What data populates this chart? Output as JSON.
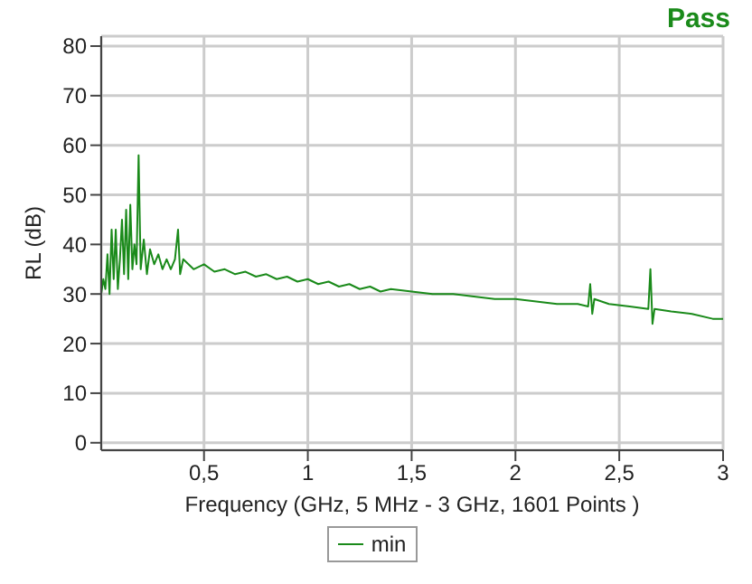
{
  "chart_data": {
    "type": "line",
    "title": "Pass",
    "xlabel": "Frequency (GHz, 5 MHz - 3 GHz, 1601 Points )",
    "ylabel": "RL (dB)",
    "xlim": [
      0.005,
      3
    ],
    "xticks": [
      {
        "value": 0.5,
        "label": "0,5"
      },
      1,
      {
        "value": 1.5,
        "label": "1,5"
      },
      2,
      {
        "value": 2.5,
        "label": "2,5"
      },
      3
    ],
    "ylim": [
      -1.5,
      82
    ],
    "yticks": [
      0,
      10,
      20,
      30,
      40,
      50,
      60,
      70,
      80
    ],
    "grid": true,
    "legend": "bottom",
    "marker": "none",
    "line_style": "solid",
    "series": [
      {
        "name": "min",
        "color": "#1a8a1a",
        "x": [
          0.005,
          0.015,
          0.025,
          0.035,
          0.045,
          0.055,
          0.065,
          0.075,
          0.085,
          0.095,
          0.105,
          0.115,
          0.125,
          0.135,
          0.145,
          0.155,
          0.165,
          0.175,
          0.185,
          0.195,
          0.21,
          0.225,
          0.24,
          0.26,
          0.28,
          0.3,
          0.32,
          0.34,
          0.36,
          0.375,
          0.385,
          0.4,
          0.45,
          0.5,
          0.55,
          0.6,
          0.65,
          0.7,
          0.75,
          0.8,
          0.85,
          0.9,
          0.95,
          1.0,
          1.05,
          1.1,
          1.15,
          1.2,
          1.25,
          1.3,
          1.35,
          1.4,
          1.5,
          1.6,
          1.7,
          1.8,
          1.9,
          2.0,
          2.1,
          2.2,
          2.3,
          2.35,
          2.36,
          2.37,
          2.38,
          2.45,
          2.55,
          2.64,
          2.65,
          2.66,
          2.67,
          2.75,
          2.85,
          2.95,
          3.0
        ],
        "values": [
          30,
          33,
          31,
          38,
          30,
          43,
          33,
          43,
          31,
          37,
          45,
          34,
          47,
          33,
          48,
          35,
          40,
          36,
          58,
          35,
          41,
          34,
          39,
          36,
          38,
          35,
          37,
          35,
          37,
          43,
          34,
          37,
          35,
          36,
          34.5,
          35,
          34,
          34.5,
          33.5,
          34,
          33,
          33.5,
          32.5,
          33,
          32,
          32.5,
          31.5,
          32,
          31,
          31.5,
          30.5,
          31,
          30.5,
          30,
          30,
          29.5,
          29,
          29,
          28.5,
          28,
          28,
          27.5,
          32,
          26,
          29,
          28,
          27.5,
          27,
          35,
          24,
          27,
          26.5,
          26,
          25,
          25
        ]
      }
    ]
  }
}
